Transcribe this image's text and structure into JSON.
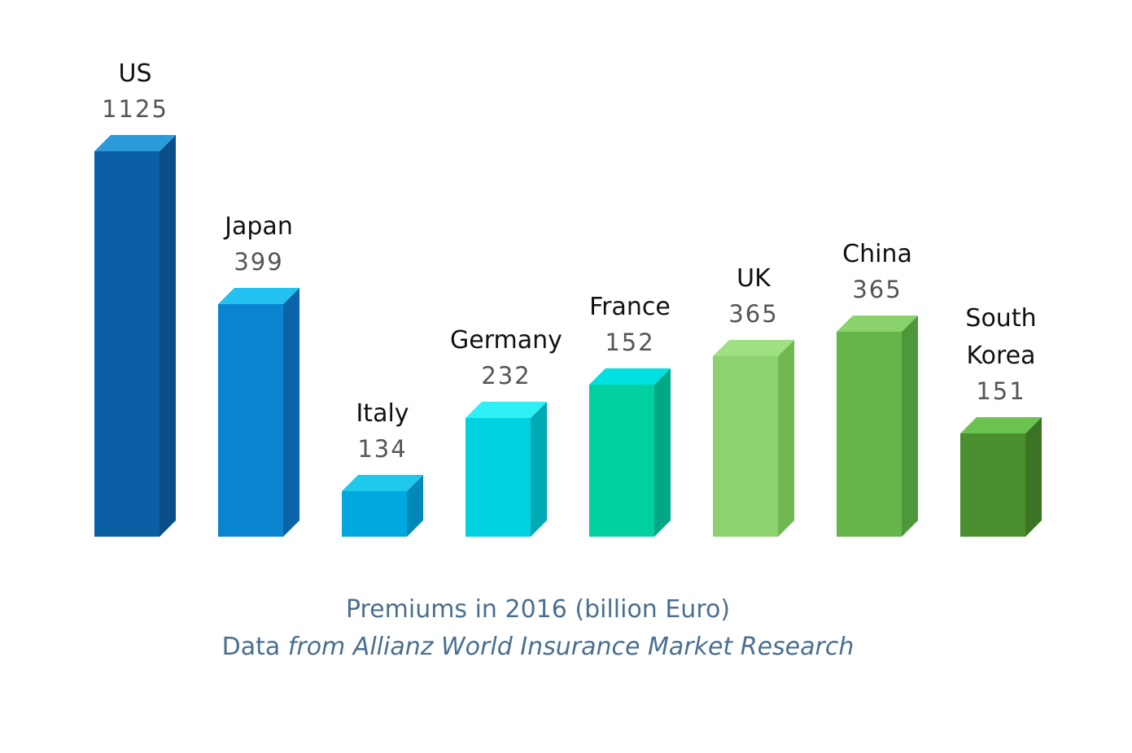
{
  "chart_data": {
    "type": "bar",
    "categories": [
      "US",
      "Japan",
      "Italy",
      "Germany",
      "France",
      "UK",
      "China",
      "South Korea"
    ],
    "category_lines": [
      [
        "US"
      ],
      [
        "Japan"
      ],
      [
        "Italy"
      ],
      [
        "Germany"
      ],
      [
        "France"
      ],
      [
        "UK"
      ],
      [
        "China"
      ],
      [
        "South",
        "Korea"
      ]
    ],
    "values": [
      1125,
      399,
      134,
      232,
      152,
      365,
      365,
      151
    ],
    "value_labels": [
      "1125",
      "399",
      "134",
      "232",
      "152",
      "365",
      "365",
      "151"
    ],
    "colors": [
      {
        "front": "#0b5fa5",
        "top": "#2a9bd8",
        "side": "#0a4f88"
      },
      {
        "front": "#0a84d0",
        "top": "#24c2f0",
        "side": "#0b64a8"
      },
      {
        "front": "#00a8e0",
        "top": "#21c8ee",
        "side": "#0089b8"
      },
      {
        "front": "#00d2e0",
        "top": "#2ff0f5",
        "side": "#00a9b4"
      },
      {
        "front": "#00cfa2",
        "top": "#00e0e0",
        "side": "#00a886"
      },
      {
        "front": "#8dd26e",
        "top": "#9fe082",
        "side": "#6fb852"
      },
      {
        "front": "#66b54a",
        "top": "#8ad26b",
        "side": "#4d9838"
      },
      {
        "front": "#4a8f2e",
        "top": "#6cc250",
        "side": "#3a7424"
      }
    ],
    "caption_line1": "Premiums in 2016 (billion Euro)",
    "caption_line2_prefix": "Data ",
    "caption_line2_italic": "from Allianz World Insurance Market Research"
  }
}
